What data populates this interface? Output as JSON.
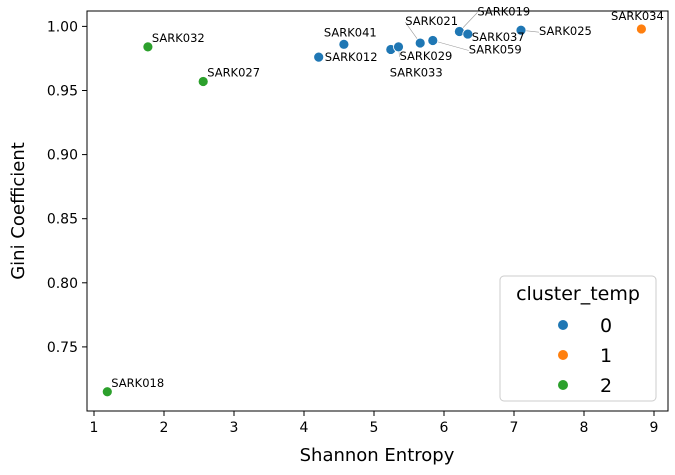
{
  "chart_data": {
    "type": "scatter",
    "xlabel": "Shannon Entropy",
    "ylabel": "Gini Coefficient",
    "xlim": [
      0.9,
      9.2
    ],
    "ylim": [
      0.7,
      1.012
    ],
    "xticks": [
      1,
      2,
      3,
      4,
      5,
      6,
      7,
      8,
      9
    ],
    "yticks": [
      0.75,
      0.8,
      0.85,
      0.9,
      0.95,
      1.0
    ],
    "ytick_labels": [
      "0.75",
      "0.80",
      "0.85",
      "0.90",
      "0.95",
      "1.00"
    ],
    "grid": false,
    "legend": {
      "title": "cluster_temp",
      "placement": "bottom-right",
      "entries": [
        {
          "label": "0",
          "color": "#1f77b4"
        },
        {
          "label": "1",
          "color": "#ff7f0e"
        },
        {
          "label": "2",
          "color": "#2ca02c"
        }
      ]
    },
    "points": [
      {
        "label": "SARK032",
        "x": 1.77,
        "y": 0.984,
        "cluster": 2
      },
      {
        "label": "SARK027",
        "x": 2.56,
        "y": 0.957,
        "cluster": 2
      },
      {
        "label": "SARK018",
        "x": 1.19,
        "y": 0.715,
        "cluster": 2
      },
      {
        "label": "SARK041",
        "x": 4.57,
        "y": 0.986,
        "cluster": 0
      },
      {
        "label": "SARK012",
        "x": 4.21,
        "y": 0.976,
        "cluster": 0
      },
      {
        "label": "SARK033",
        "x": 5.24,
        "y": 0.982,
        "cluster": 0
      },
      {
        "label": "SARK029",
        "x": 5.35,
        "y": 0.984,
        "cluster": 0
      },
      {
        "label": "SARK021",
        "x": 5.66,
        "y": 0.987,
        "cluster": 0
      },
      {
        "label": "SARK059",
        "x": 5.84,
        "y": 0.989,
        "cluster": 0
      },
      {
        "label": "SARK019",
        "x": 6.22,
        "y": 0.996,
        "cluster": 0
      },
      {
        "label": "SARK037",
        "x": 6.34,
        "y": 0.994,
        "cluster": 0
      },
      {
        "label": "SARK025",
        "x": 7.1,
        "y": 0.997,
        "cluster": 0
      },
      {
        "label": "SARK034",
        "x": 8.82,
        "y": 0.998,
        "cluster": 1
      }
    ]
  }
}
